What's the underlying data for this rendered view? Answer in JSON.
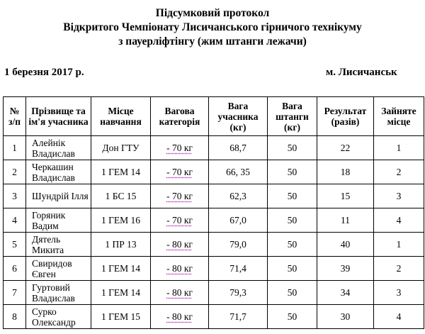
{
  "header": {
    "title": [
      "Підсумковий протокол",
      "Відкритого Чемпіонату Лисичанського гірничого технікуму",
      "з пауерліфтінгу (жим штанги лежачи)"
    ],
    "date": "1 березня 2017 р.",
    "city": "м. Лисичанськ"
  },
  "table": {
    "columns": [
      "№ з/п",
      "Прізвище та ім'я учасника",
      "Місце навчання",
      "Вагова категорія",
      "Вага учасника (кг)",
      "Вага штанги (кг)",
      "Результат (разів)",
      "Зайняте місце"
    ],
    "rows": [
      [
        "1",
        "Алейнік Владислав",
        "Дон ГТУ",
        "- 70 кг",
        "68,7",
        "50",
        "22",
        "1"
      ],
      [
        "2",
        "Черкашин Владислав",
        "1 ГЕМ 14",
        "- 70 кг",
        "66, 35",
        "50",
        "18",
        "2"
      ],
      [
        "3",
        "Шундрій Ілля",
        "1 БС 15",
        "- 70 кг",
        "62,3",
        "50",
        "15",
        "3"
      ],
      [
        "4",
        "Горяник Вадим",
        "1 ГЕМ 16",
        "- 70 кг",
        "67,0",
        "50",
        "11",
        "4"
      ],
      [
        "5",
        "Дятель Микита",
        "1 ПР 13",
        "- 80 кг",
        "79,0",
        "50",
        "40",
        "1"
      ],
      [
        "6",
        "Свиридов Євген",
        "1 ГЕМ 14",
        "- 80 кг",
        "71,4",
        "50",
        "39",
        "2"
      ],
      [
        "7",
        "Гуртовий Владислав",
        "1 ГЕМ 14",
        "- 80 кг",
        "79,3",
        "50",
        "34",
        "3"
      ],
      [
        "8",
        "Сурко Олександр",
        "1 ГЕМ 15",
        "- 80 кг",
        "71,7",
        "50",
        "30",
        "4"
      ]
    ]
  }
}
